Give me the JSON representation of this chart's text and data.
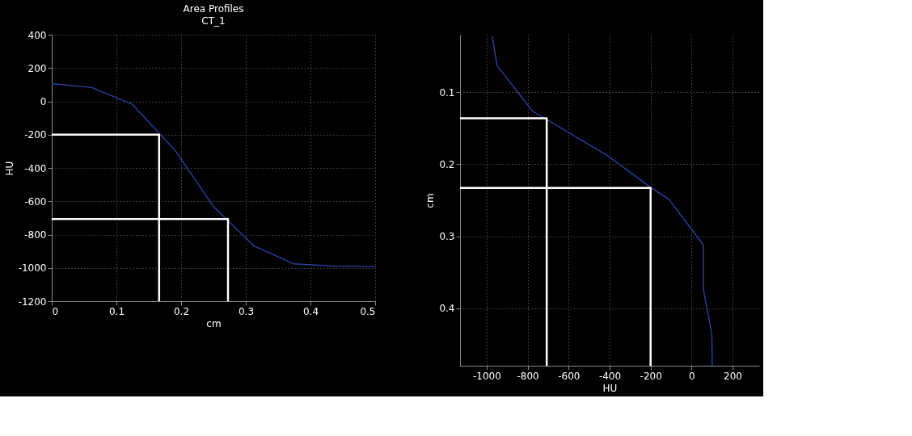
{
  "chart_data": [
    {
      "type": "line",
      "title": "Area Profiles",
      "subtitle": "CT_1",
      "xlabel": "cm",
      "ylabel": "HU",
      "xlim": [
        0,
        0.5
      ],
      "ylim": [
        -1200,
        400
      ],
      "xticks": [
        0,
        0.1,
        0.2,
        0.3,
        0.4,
        0.5
      ],
      "yticks": [
        -1200,
        -1000,
        -800,
        -600,
        -400,
        -200,
        0,
        200,
        400
      ],
      "grid": true,
      "series": [
        {
          "color": "#2b3f9e",
          "x": [
            0,
            0.0616,
            0.124,
            0.191,
            0.25,
            0.312,
            0.3745,
            0.434,
            0.5
          ],
          "values": [
            107,
            83,
            -16,
            -296,
            -632,
            -867,
            -976,
            -989,
            -992
          ]
        },
        {
          "color": "#ffffff",
          "x": [
            0,
            0.166,
            0.166
          ],
          "values": [
            -200,
            -200,
            -1200
          ]
        },
        {
          "color": "#ffffff",
          "x": [
            0,
            0.2725,
            0.2725
          ],
          "values": [
            -707,
            -707,
            -1200
          ]
        }
      ]
    },
    {
      "type": "line",
      "xlabel": "HU",
      "ylabel": "cm",
      "xlim": [
        -1130,
        330
      ],
      "ylim": [
        0.48,
        0.02
      ],
      "xticks": [
        -1000,
        -800,
        -600,
        -400,
        -200,
        0,
        200
      ],
      "yticks": [
        0.1,
        0.2,
        0.3,
        0.4
      ],
      "grid": true,
      "series": [
        {
          "color": "#2b3f9e",
          "x": [
            -973,
            -949,
            -777,
            -416,
            -205,
            -110,
            57,
            57,
            99,
            101
          ],
          "values": [
            0.022,
            0.063,
            0.126,
            0.187,
            0.231,
            0.249,
            0.312,
            0.373,
            0.437,
            0.48
          ]
        },
        {
          "color": "#ffffff",
          "x": [
            -1130,
            -707,
            -707
          ],
          "values": [
            0.136,
            0.136,
            0.48
          ]
        },
        {
          "color": "#ffffff",
          "x": [
            -1130,
            -200,
            -200
          ],
          "values": [
            0.233,
            0.233,
            0.48
          ]
        }
      ]
    }
  ]
}
